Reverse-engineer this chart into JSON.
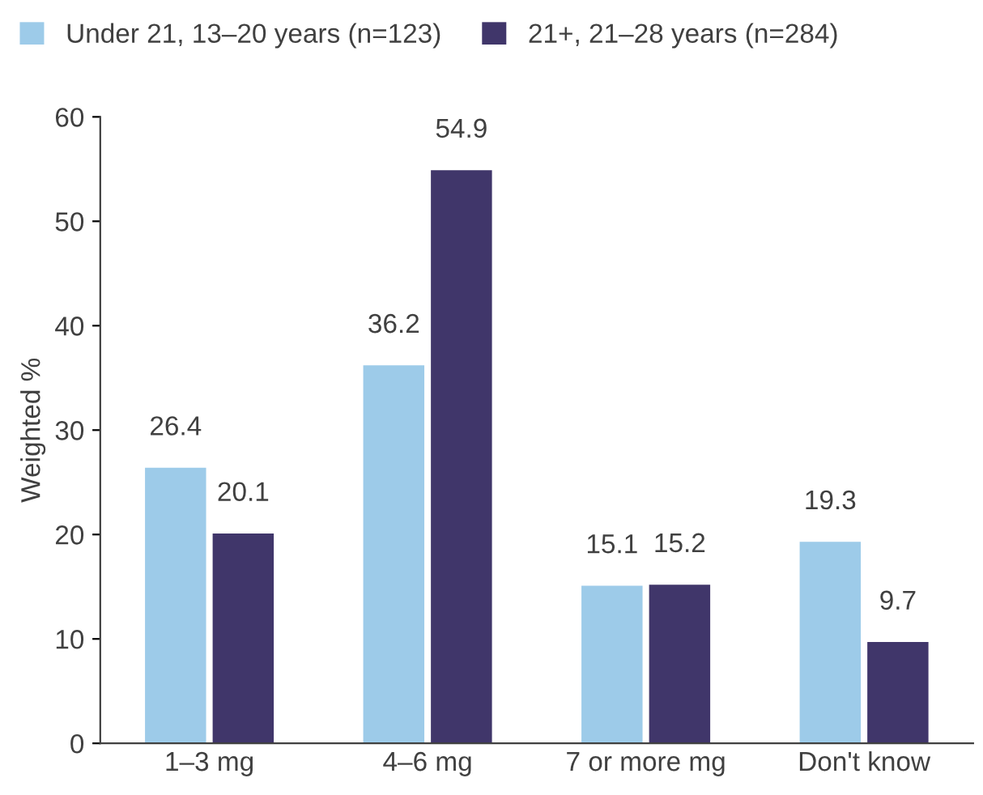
{
  "chart_data": {
    "type": "bar",
    "ylabel": "Weighted %",
    "categories": [
      "1–3 mg",
      "4–6 mg",
      "7 or more mg",
      "Don't know"
    ],
    "series": [
      {
        "name": "Under 21, 13–20 years (n=123)",
        "color": "#9dcbe9",
        "values": [
          26.4,
          36.2,
          15.1,
          19.3
        ]
      },
      {
        "name": "21+, 21–28 years (n=284)",
        "color": "#40366a",
        "values": [
          20.1,
          54.9,
          15.2,
          9.7
        ]
      }
    ],
    "ylim": [
      0,
      60
    ],
    "yticks": [
      0,
      10,
      20,
      30,
      40,
      50,
      60
    ],
    "data_labels": true,
    "legend": "top left",
    "grid": false
  }
}
